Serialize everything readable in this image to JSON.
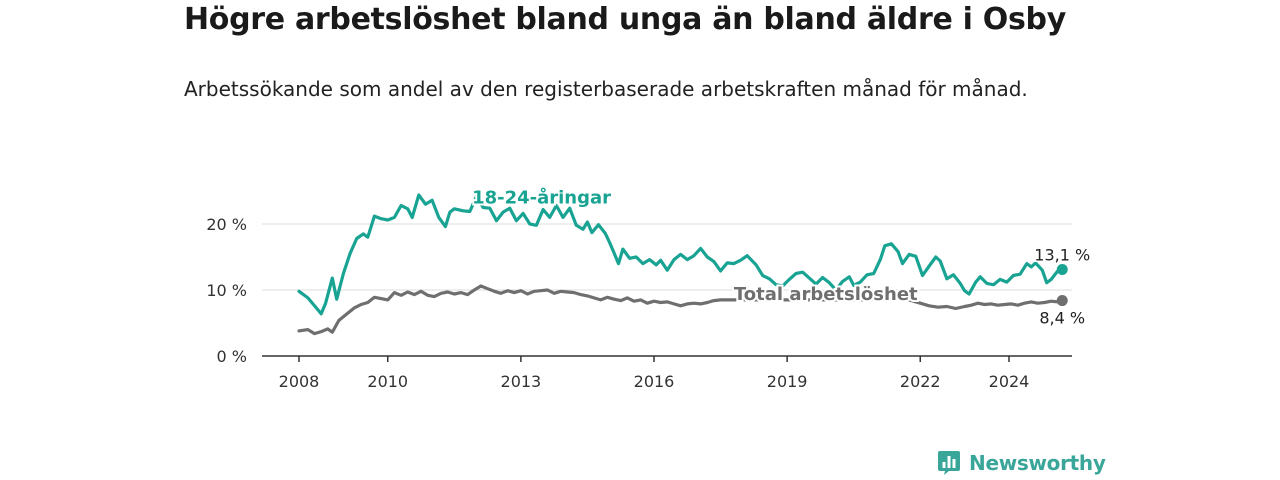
{
  "title": "Högre arbetslöshet bland unga än bland äldre i Osby",
  "subtitle": "Arbetssökande som andel av den registerbaserade arbetskraften månad för månad.",
  "brand": {
    "name": "Newsworthy",
    "icon": "newsworthy-logo-icon"
  },
  "colors": {
    "youth": "#18a393",
    "total": "#6f6f6f",
    "grid": "#dddddd",
    "axis": "#333333",
    "brand": "#3aa699"
  },
  "chart_data": {
    "type": "line",
    "title": "Högre arbetslöshet bland unga än bland äldre i Osby",
    "subtitle": "Arbetssökande som andel av den registerbaserade arbetskraften månad för månad.",
    "xlabel": "",
    "ylabel": "",
    "xlim": [
      2007.5,
      2025.3
    ],
    "ylim": [
      0,
      22
    ],
    "x_ticks": [
      {
        "value": 2008,
        "label": "2008"
      },
      {
        "value": 2010,
        "label": "2010"
      },
      {
        "value": 2013,
        "label": "2013"
      },
      {
        "value": 2016,
        "label": "2016"
      },
      {
        "value": 2019,
        "label": "2019"
      },
      {
        "value": 2022,
        "label": "2022"
      },
      {
        "value": 2024,
        "label": "2024"
      }
    ],
    "y_ticks": [
      {
        "value": 0,
        "label": "0 %"
      },
      {
        "value": 10,
        "label": "10 %"
      },
      {
        "value": 20,
        "label": "20 %"
      }
    ],
    "grid": true,
    "legend": "inline labels",
    "series": [
      {
        "name": "18-24-åringar",
        "label_x": 2011.9,
        "label_y": 23.1,
        "end_label": "13,1 %",
        "points": [
          [
            2008.0,
            9.8
          ],
          [
            2008.2,
            8.8
          ],
          [
            2008.4,
            7.2
          ],
          [
            2008.5,
            6.4
          ],
          [
            2008.6,
            8.0
          ],
          [
            2008.75,
            11.8
          ],
          [
            2008.85,
            8.6
          ],
          [
            2009.0,
            12.5
          ],
          [
            2009.15,
            15.5
          ],
          [
            2009.3,
            17.8
          ],
          [
            2009.45,
            18.5
          ],
          [
            2009.55,
            18.0
          ],
          [
            2009.7,
            21.2
          ],
          [
            2009.85,
            20.8
          ],
          [
            2010.0,
            20.6
          ],
          [
            2010.15,
            21.0
          ],
          [
            2010.3,
            22.8
          ],
          [
            2010.45,
            22.3
          ],
          [
            2010.55,
            21.0
          ],
          [
            2010.7,
            24.4
          ],
          [
            2010.85,
            23.0
          ],
          [
            2011.0,
            23.6
          ],
          [
            2011.15,
            21.0
          ],
          [
            2011.3,
            19.6
          ],
          [
            2011.4,
            21.8
          ],
          [
            2011.5,
            22.3
          ],
          [
            2011.7,
            22.0
          ],
          [
            2011.85,
            21.9
          ],
          [
            2012.0,
            24.2
          ],
          [
            2012.15,
            22.5
          ],
          [
            2012.3,
            22.4
          ],
          [
            2012.45,
            20.5
          ],
          [
            2012.6,
            21.8
          ],
          [
            2012.75,
            22.4
          ],
          [
            2012.9,
            20.5
          ],
          [
            2013.05,
            21.6
          ],
          [
            2013.2,
            20.0
          ],
          [
            2013.35,
            19.8
          ],
          [
            2013.5,
            22.2
          ],
          [
            2013.65,
            21.0
          ],
          [
            2013.8,
            22.8
          ],
          [
            2013.95,
            21.0
          ],
          [
            2014.1,
            22.4
          ],
          [
            2014.25,
            19.8
          ],
          [
            2014.4,
            19.2
          ],
          [
            2014.5,
            20.3
          ],
          [
            2014.6,
            18.7
          ],
          [
            2014.75,
            19.9
          ],
          [
            2014.9,
            18.6
          ],
          [
            2015.0,
            17.2
          ],
          [
            2015.1,
            15.6
          ],
          [
            2015.2,
            14.0
          ],
          [
            2015.3,
            16.2
          ],
          [
            2015.45,
            14.8
          ],
          [
            2015.6,
            15.0
          ],
          [
            2015.75,
            14.0
          ],
          [
            2015.9,
            14.6
          ],
          [
            2016.05,
            13.8
          ],
          [
            2016.15,
            14.5
          ],
          [
            2016.3,
            13.0
          ],
          [
            2016.45,
            14.6
          ],
          [
            2016.6,
            15.4
          ],
          [
            2016.75,
            14.6
          ],
          [
            2016.9,
            15.2
          ],
          [
            2017.05,
            16.3
          ],
          [
            2017.2,
            15.0
          ],
          [
            2017.35,
            14.3
          ],
          [
            2017.5,
            12.9
          ],
          [
            2017.65,
            14.1
          ],
          [
            2017.8,
            14.0
          ],
          [
            2017.95,
            14.5
          ],
          [
            2018.1,
            15.2
          ],
          [
            2018.3,
            13.8
          ],
          [
            2018.45,
            12.2
          ],
          [
            2018.6,
            11.7
          ],
          [
            2018.75,
            10.8
          ],
          [
            2018.9,
            10.6
          ],
          [
            2019.05,
            11.6
          ],
          [
            2019.2,
            12.5
          ],
          [
            2019.35,
            12.7
          ],
          [
            2019.5,
            11.8
          ],
          [
            2019.65,
            10.9
          ],
          [
            2019.8,
            11.9
          ],
          [
            2019.95,
            11.1
          ],
          [
            2020.1,
            10.0
          ],
          [
            2020.25,
            11.3
          ],
          [
            2020.4,
            12.0
          ],
          [
            2020.5,
            10.7
          ],
          [
            2020.65,
            11.2
          ],
          [
            2020.8,
            12.3
          ],
          [
            2020.95,
            12.5
          ],
          [
            2021.1,
            14.6
          ],
          [
            2021.2,
            16.7
          ],
          [
            2021.35,
            17.0
          ],
          [
            2021.5,
            15.8
          ],
          [
            2021.6,
            14.0
          ],
          [
            2021.75,
            15.4
          ],
          [
            2021.9,
            15.1
          ],
          [
            2022.05,
            12.2
          ],
          [
            2022.2,
            13.6
          ],
          [
            2022.35,
            15.0
          ],
          [
            2022.45,
            14.4
          ],
          [
            2022.6,
            11.7
          ],
          [
            2022.75,
            12.3
          ],
          [
            2022.9,
            11.0
          ],
          [
            2023.0,
            9.9
          ],
          [
            2023.1,
            9.4
          ],
          [
            2023.25,
            11.2
          ],
          [
            2023.35,
            12.0
          ],
          [
            2023.5,
            11.0
          ],
          [
            2023.65,
            10.8
          ],
          [
            2023.8,
            11.6
          ],
          [
            2023.95,
            11.2
          ],
          [
            2024.1,
            12.2
          ],
          [
            2024.25,
            12.4
          ],
          [
            2024.4,
            14.0
          ],
          [
            2024.5,
            13.5
          ],
          [
            2024.6,
            14.1
          ],
          [
            2024.75,
            13.0
          ],
          [
            2024.85,
            11.1
          ],
          [
            2024.95,
            11.6
          ],
          [
            2025.1,
            12.9
          ],
          [
            2025.2,
            13.1
          ]
        ]
      },
      {
        "name": "Total arbetslöshet",
        "label_x": 2017.8,
        "label_y": 8.5,
        "end_label": "8,4 %",
        "points": [
          [
            2008.0,
            3.8
          ],
          [
            2008.2,
            4.0
          ],
          [
            2008.35,
            3.4
          ],
          [
            2008.5,
            3.7
          ],
          [
            2008.65,
            4.1
          ],
          [
            2008.75,
            3.6
          ],
          [
            2008.9,
            5.4
          ],
          [
            2009.1,
            6.5
          ],
          [
            2009.25,
            7.3
          ],
          [
            2009.4,
            7.8
          ],
          [
            2009.55,
            8.1
          ],
          [
            2009.7,
            8.9
          ],
          [
            2009.85,
            8.7
          ],
          [
            2010.0,
            8.5
          ],
          [
            2010.15,
            9.6
          ],
          [
            2010.3,
            9.2
          ],
          [
            2010.45,
            9.7
          ],
          [
            2010.6,
            9.3
          ],
          [
            2010.75,
            9.8
          ],
          [
            2010.9,
            9.2
          ],
          [
            2011.05,
            9.0
          ],
          [
            2011.2,
            9.5
          ],
          [
            2011.35,
            9.7
          ],
          [
            2011.5,
            9.4
          ],
          [
            2011.65,
            9.6
          ],
          [
            2011.8,
            9.3
          ],
          [
            2011.95,
            10.0
          ],
          [
            2012.1,
            10.6
          ],
          [
            2012.25,
            10.2
          ],
          [
            2012.4,
            9.8
          ],
          [
            2012.55,
            9.5
          ],
          [
            2012.7,
            9.9
          ],
          [
            2012.85,
            9.6
          ],
          [
            2013.0,
            9.9
          ],
          [
            2013.15,
            9.4
          ],
          [
            2013.3,
            9.8
          ],
          [
            2013.45,
            9.9
          ],
          [
            2013.6,
            10.0
          ],
          [
            2013.75,
            9.5
          ],
          [
            2013.9,
            9.8
          ],
          [
            2014.05,
            9.7
          ],
          [
            2014.2,
            9.6
          ],
          [
            2014.35,
            9.3
          ],
          [
            2014.5,
            9.1
          ],
          [
            2014.65,
            8.8
          ],
          [
            2014.8,
            8.5
          ],
          [
            2014.95,
            8.9
          ],
          [
            2015.1,
            8.6
          ],
          [
            2015.25,
            8.4
          ],
          [
            2015.4,
            8.8
          ],
          [
            2015.55,
            8.3
          ],
          [
            2015.7,
            8.5
          ],
          [
            2015.85,
            8.0
          ],
          [
            2016.0,
            8.3
          ],
          [
            2016.15,
            8.1
          ],
          [
            2016.3,
            8.2
          ],
          [
            2016.45,
            7.9
          ],
          [
            2016.6,
            7.6
          ],
          [
            2016.75,
            7.9
          ],
          [
            2016.9,
            8.0
          ],
          [
            2017.05,
            7.9
          ],
          [
            2017.2,
            8.1
          ],
          [
            2017.35,
            8.4
          ],
          [
            2017.5,
            8.5
          ],
          [
            2017.8,
            8.5
          ],
          [
            2018.1,
            8.5
          ],
          [
            2018.4,
            8.5
          ],
          [
            2018.7,
            8.5
          ],
          [
            2019.0,
            8.5
          ],
          [
            2019.3,
            8.5
          ],
          [
            2019.6,
            8.5
          ],
          [
            2019.9,
            8.5
          ],
          [
            2020.2,
            8.5
          ],
          [
            2020.5,
            8.5
          ],
          [
            2020.8,
            8.5
          ],
          [
            2021.0,
            8.6
          ],
          [
            2021.2,
            8.7
          ],
          [
            2021.4,
            8.8
          ],
          [
            2021.6,
            8.7
          ],
          [
            2021.8,
            8.4
          ],
          [
            2022.0,
            8.0
          ],
          [
            2022.2,
            7.6
          ],
          [
            2022.4,
            7.4
          ],
          [
            2022.6,
            7.5
          ],
          [
            2022.8,
            7.2
          ],
          [
            2023.0,
            7.5
          ],
          [
            2023.15,
            7.7
          ],
          [
            2023.3,
            8.0
          ],
          [
            2023.45,
            7.8
          ],
          [
            2023.6,
            7.9
          ],
          [
            2023.75,
            7.7
          ],
          [
            2023.9,
            7.8
          ],
          [
            2024.05,
            7.9
          ],
          [
            2024.2,
            7.7
          ],
          [
            2024.35,
            8.0
          ],
          [
            2024.5,
            8.2
          ],
          [
            2024.65,
            8.0
          ],
          [
            2024.8,
            8.1
          ],
          [
            2024.95,
            8.3
          ],
          [
            2025.1,
            8.2
          ],
          [
            2025.2,
            8.4
          ]
        ]
      }
    ]
  }
}
